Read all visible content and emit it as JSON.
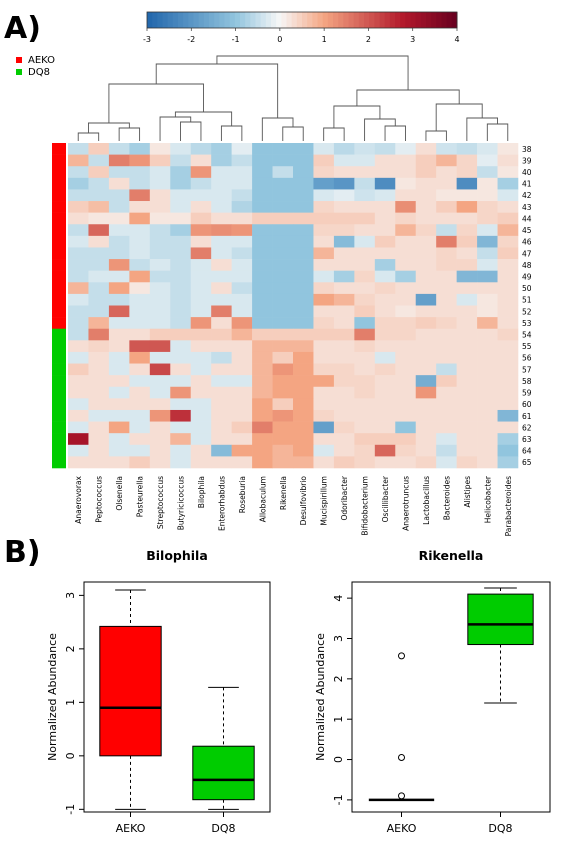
{
  "panels": {
    "a_label": "A)",
    "b_label": "B)"
  },
  "colors": {
    "aeko": "#ff0000",
    "dq8": "#00cc00",
    "low": "#2166ac",
    "mid": "#f7f7f7",
    "high": "#67001f",
    "dendrogram": "#555555"
  },
  "chart_data": [
    {
      "type": "heatmap",
      "title": "",
      "color_scale": {
        "min": -3,
        "max": 4,
        "ticks": [
          "-3",
          "-2",
          "-1",
          "0",
          "1",
          "2",
          "3",
          "4"
        ]
      },
      "legend": [
        {
          "name": "AEKO",
          "color": "#ff0000"
        },
        {
          "name": "DQ8",
          "color": "#00cc00"
        }
      ],
      "columns": [
        "Anaerovorax",
        "Peptococcus",
        "Olsenella",
        "Pasteurella",
        "Streptococcus",
        "Butyricicoccus",
        "Bilophila",
        "Enterorhabdus",
        "Roseburia",
        "Allobaculum",
        "Rikenella",
        "Desulfovibrio",
        "Mucispirillum",
        "Odoribacter",
        "Bifidobacterium",
        "Oscillibacter",
        "Anaerotruncus",
        "Lactobacillus",
        "Bacteroides",
        "Alistipes",
        "Helicobacter",
        "Parabacteroides"
      ],
      "rows": [
        "38",
        "39",
        "40",
        "41",
        "42",
        "43",
        "44",
        "45",
        "46",
        "47",
        "48",
        "49",
        "50",
        "51",
        "52",
        "53",
        "54",
        "55",
        "56",
        "57",
        "58",
        "59",
        "60",
        "61",
        "62",
        "63",
        "64",
        "65"
      ],
      "row_groups": [
        "AEKO",
        "AEKO",
        "AEKO",
        "AEKO",
        "AEKO",
        "AEKO",
        "AEKO",
        "AEKO",
        "AEKO",
        "AEKO",
        "AEKO",
        "AEKO",
        "AEKO",
        "AEKO",
        "AEKO",
        "AEKO",
        "DQ8",
        "DQ8",
        "DQ8",
        "DQ8",
        "DQ8",
        "DQ8",
        "DQ8",
        "DQ8",
        "DQ8",
        "DQ8",
        "DQ8",
        "DQ8"
      ],
      "values": [
        [
          -0.5,
          0.5,
          -0.5,
          -0.8,
          0.2,
          -0.3,
          -0.6,
          -0.8,
          -0.2,
          -1,
          -1,
          -1,
          -0.3,
          -0.6,
          -0.4,
          -0.5,
          -0.2,
          0.3,
          -0.4,
          -0.5,
          -0.3,
          0.2
        ],
        [
          0.8,
          -0.5,
          1.5,
          1.2,
          0.5,
          -0.5,
          0.3,
          -0.8,
          -0.5,
          -1,
          -1,
          -1,
          0.5,
          -0.3,
          -0.3,
          0.3,
          0.3,
          0.5,
          0.8,
          0.4,
          -0.2,
          0.3
        ],
        [
          -0.5,
          0.5,
          -0.5,
          -0.5,
          -0.3,
          -0.8,
          1.2,
          -0.3,
          -0.3,
          -1,
          -0.5,
          -1,
          0.4,
          0.3,
          0.3,
          0.3,
          0.3,
          0.5,
          0.3,
          0.4,
          -0.5,
          0.2
        ],
        [
          -0.8,
          -0.5,
          0.3,
          -0.5,
          -0.3,
          -0.8,
          -0.5,
          -0.3,
          -0.3,
          -1,
          -1,
          -1,
          -1.8,
          -2,
          -0.5,
          -2.2,
          0.2,
          0.3,
          0.3,
          -2.2,
          0.2,
          -0.8
        ],
        [
          -0.5,
          -0.5,
          -0.5,
          1.5,
          0.3,
          -0.3,
          -0.3,
          -0.3,
          -0.5,
          -1,
          -1,
          -1,
          -0.3,
          -0.2,
          -0.4,
          -0.3,
          0.3,
          0.3,
          0.2,
          0.2,
          0.2,
          -0.3
        ],
        [
          0.5,
          0.7,
          -0.5,
          0.3,
          0.3,
          -0.3,
          0.3,
          -0.3,
          -0.7,
          -1,
          -1,
          -1,
          0.4,
          0.3,
          0.3,
          0.3,
          1.3,
          0.3,
          0.5,
          1,
          0.4,
          0.3
        ],
        [
          0.3,
          0.2,
          0.2,
          1,
          0.2,
          0.2,
          0.5,
          0.3,
          0.3,
          0.5,
          0.5,
          0.5,
          0.5,
          0.5,
          0.5,
          0.3,
          0.4,
          0.3,
          0.3,
          0.3,
          0.4,
          0.5
        ],
        [
          -0.5,
          1.8,
          -0.3,
          -0.3,
          -0.5,
          -0.8,
          1.2,
          1.3,
          1.2,
          -1,
          -1,
          -1,
          0.4,
          0.4,
          0.3,
          0.3,
          0.8,
          0.4,
          -0.5,
          0.4,
          -0.3,
          0.8
        ],
        [
          -0.3,
          0.3,
          -0.5,
          -0.3,
          -0.5,
          -0.5,
          0.3,
          -0.3,
          -0.3,
          -1,
          -1,
          -1,
          0.3,
          -1.2,
          -0.3,
          0.5,
          0.3,
          0.3,
          1.5,
          0.5,
          -1.3,
          0.4
        ],
        [
          -0.5,
          -0.5,
          -0.5,
          -0.3,
          -0.5,
          -0.5,
          1.5,
          -0.3,
          -0.5,
          -1,
          -1,
          -1,
          0.8,
          0.3,
          0.3,
          0.3,
          0.3,
          0.3,
          0.4,
          0.3,
          -0.5,
          0.5
        ],
        [
          -0.5,
          -0.5,
          1.2,
          -0.5,
          -0.3,
          -0.5,
          -0.3,
          0.3,
          -0.3,
          -1,
          -1,
          -1,
          0.3,
          0.3,
          0.3,
          -0.8,
          0.3,
          0.3,
          0.4,
          0.4,
          -0.3,
          0.3
        ],
        [
          -0.5,
          -0.3,
          -0.3,
          1,
          -0.5,
          -0.5,
          -0.3,
          -0.3,
          -0.3,
          -1,
          -1,
          -1,
          -0.3,
          -0.8,
          0.4,
          -0.3,
          -0.8,
          0.3,
          0.3,
          -1.3,
          -1.3,
          0.3
        ],
        [
          0.8,
          -0.5,
          1,
          0.2,
          -0.3,
          -0.5,
          -0.3,
          0.3,
          -0.5,
          -1,
          -1,
          -1,
          0.4,
          0.3,
          0.3,
          0.4,
          0.3,
          0.3,
          0.3,
          0.3,
          0.3,
          0.3
        ],
        [
          -0.3,
          -0.5,
          -0.5,
          -0.3,
          -0.3,
          -0.5,
          -0.3,
          -0.3,
          -0.3,
          -1,
          -1,
          -1,
          1,
          0.8,
          0.4,
          0.3,
          0.3,
          -1.8,
          0.3,
          -0.3,
          0.2,
          0.3
        ],
        [
          -0.5,
          -0.5,
          1.8,
          -0.3,
          -0.3,
          -0.5,
          -0.3,
          1.5,
          -0.3,
          -1,
          -1,
          -1,
          0.3,
          0.3,
          0.5,
          0.3,
          0.2,
          0.3,
          0.3,
          0.3,
          0.2,
          0.3
        ],
        [
          -0.5,
          0.8,
          -0.3,
          -0.3,
          -0.3,
          -0.5,
          1.2,
          0.3,
          1.2,
          -1,
          -1,
          -1,
          0.4,
          0.3,
          -1,
          0.4,
          0.4,
          0.5,
          0.4,
          0.3,
          0.8,
          0.3
        ],
        [
          -0.5,
          1.5,
          0.3,
          0.3,
          0.5,
          0.5,
          0.5,
          0.5,
          0.8,
          0.5,
          0.5,
          0.5,
          0.5,
          0.5,
          1.5,
          0.4,
          0.4,
          0.3,
          0.3,
          0.3,
          0.3,
          0.4
        ],
        [
          0.3,
          0.4,
          0.3,
          2,
          2,
          -0.3,
          0.3,
          0.3,
          0.3,
          0.8,
          0.8,
          0.8,
          0.3,
          0.3,
          0.4,
          0.3,
          0.3,
          0.3,
          0.3,
          0.3,
          0.3,
          0.3
        ],
        [
          -0.3,
          0.3,
          -0.3,
          1,
          -0.3,
          -0.3,
          -0.3,
          -0.5,
          0.3,
          0.8,
          0.5,
          1,
          0.3,
          0.3,
          0.3,
          -0.3,
          0.3,
          0.3,
          0.3,
          0.3,
          0.3,
          0.3
        ],
        [
          0.5,
          0.3,
          -0.3,
          0.3,
          2.2,
          0.3,
          -0.3,
          0.3,
          0.3,
          0.8,
          1.2,
          1,
          0.4,
          0.4,
          0.3,
          0.4,
          0.3,
          0.3,
          -0.5,
          0.3,
          0.3,
          0.3
        ],
        [
          0.3,
          0.3,
          0.3,
          -0.3,
          -0.3,
          -0.3,
          0.3,
          -0.3,
          -0.3,
          0.8,
          1,
          1,
          1,
          0.4,
          0.4,
          0.3,
          0.3,
          -1.5,
          0.5,
          0.3,
          0.3,
          0.3
        ],
        [
          0.3,
          0.3,
          -0.3,
          0.3,
          -0.3,
          1.2,
          0.3,
          0.3,
          0.3,
          0.8,
          1,
          1,
          0.3,
          0.3,
          0.4,
          0.3,
          0.3,
          1.2,
          0.3,
          0.3,
          0.3,
          0.3
        ],
        [
          -0.3,
          0.3,
          0.3,
          0.3,
          0.3,
          -0.3,
          -0.3,
          0.3,
          0.3,
          1,
          0.5,
          1,
          0.3,
          0.3,
          0.3,
          0.3,
          0.3,
          0.3,
          0.3,
          0.3,
          0.3,
          0.3
        ],
        [
          0.3,
          -0.3,
          -0.3,
          -0.3,
          1.2,
          2.5,
          -0.3,
          0.3,
          0.3,
          1,
          1.2,
          1,
          0.4,
          0.3,
          0.3,
          0.3,
          0.3,
          0.3,
          0.3,
          0.3,
          0.3,
          -1.3
        ],
        [
          -0.3,
          0.3,
          1,
          -0.3,
          0.3,
          -0.3,
          -0.3,
          0.3,
          0.5,
          1.5,
          1,
          1,
          -1.8,
          0.4,
          0.3,
          0.3,
          -1,
          0.3,
          0.3,
          0.3,
          0.3,
          0.3
        ],
        [
          3,
          0.3,
          -0.3,
          0.3,
          0.3,
          0.8,
          -0.3,
          0.3,
          0.3,
          1,
          1,
          1,
          0.3,
          0.3,
          0.5,
          0.5,
          0.5,
          0.3,
          -0.3,
          0.3,
          0.3,
          -0.8
        ],
        [
          -0.3,
          0.3,
          -0.3,
          -0.3,
          0.3,
          -0.3,
          0.3,
          -1.2,
          1,
          1,
          0.8,
          1,
          -0.3,
          0.3,
          0.4,
          1.8,
          0.4,
          0.3,
          -0.5,
          0.3,
          0.3,
          -1
        ],
        [
          0.3,
          0.3,
          0.3,
          0.5,
          0.3,
          -0.3,
          0.3,
          0.3,
          0.3,
          1,
          0.8,
          0.8,
          0.3,
          0.5,
          0.4,
          0.3,
          0.3,
          0.4,
          -0.3,
          0.4,
          0.3,
          -0.8
        ]
      ]
    },
    {
      "type": "box",
      "title": "Bilophila",
      "xlabel": "",
      "ylabel": "Normalized Abundance",
      "categories": [
        "AEKO",
        "DQ8"
      ],
      "ylim": [
        -1.05,
        3.25
      ],
      "yticks": [
        -1,
        0,
        1,
        2,
        3
      ],
      "boxes": [
        {
          "name": "AEKO",
          "min": -1,
          "q1": 0,
          "median": 0.9,
          "q3": 2.42,
          "max": 3.1,
          "outliers": []
        },
        {
          "name": "DQ8",
          "min": -1,
          "q1": -0.82,
          "median": -0.45,
          "q3": 0.18,
          "max": 1.28,
          "outliers": []
        }
      ]
    },
    {
      "type": "box",
      "title": "Rikenella",
      "xlabel": "",
      "ylabel": "Normalized Abundance",
      "categories": [
        "AEKO",
        "DQ8"
      ],
      "ylim": [
        -1.3,
        4.4
      ],
      "yticks": [
        -1,
        0,
        1,
        2,
        3,
        4
      ],
      "boxes": [
        {
          "name": "AEKO",
          "min": -1,
          "q1": -1,
          "median": -1,
          "q3": -1,
          "max": -1,
          "outliers": [
            2.57,
            0.05,
            -0.9
          ]
        },
        {
          "name": "DQ8",
          "min": 1.4,
          "q1": 2.85,
          "median": 3.35,
          "q3": 4.1,
          "max": 4.25,
          "outliers": []
        }
      ]
    }
  ]
}
